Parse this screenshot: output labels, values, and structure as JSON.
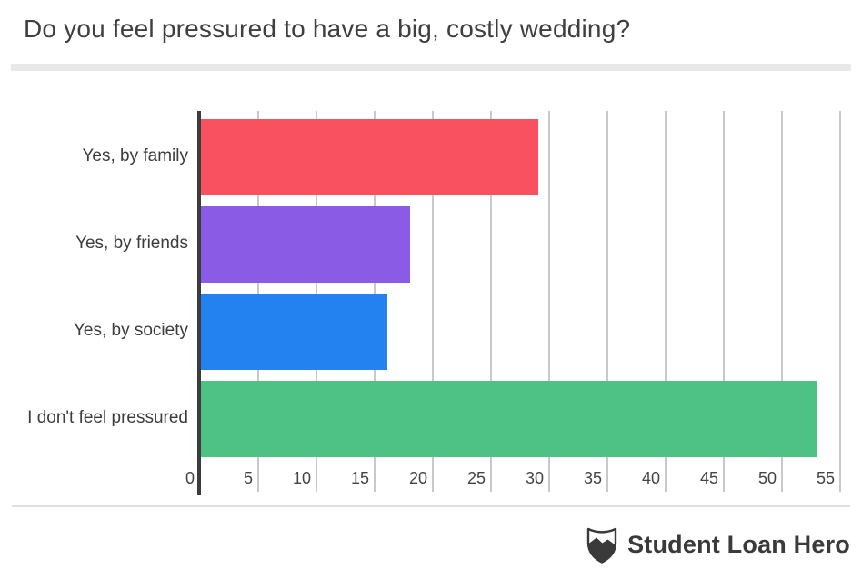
{
  "header": {
    "title": "Do you feel pressured to have a big, costly wedding?"
  },
  "chart_data": {
    "type": "bar",
    "orientation": "horizontal",
    "title": "Do you feel pressured to have a big, costly wedding?",
    "categories": [
      "Yes, by family",
      "Yes, by friends",
      "Yes, by society",
      "I don't feel pressured"
    ],
    "values": [
      29,
      18,
      16,
      53
    ],
    "bar_colors": [
      "#FA5161",
      "#8A5CE6",
      "#2382F0",
      "#4EC285"
    ],
    "xlabel": "",
    "ylabel": "",
    "xlim": [
      0,
      56
    ],
    "xticks": [
      0,
      5,
      10,
      15,
      20,
      25,
      30,
      35,
      40,
      45,
      50,
      55
    ],
    "grid": true,
    "legend": false,
    "axis_color": "#3c3c3c",
    "gridline_color": "#c9c9c9"
  },
  "footer": {
    "brand": "Student Loan Hero",
    "logo_icon": "shield-mountain-icon"
  }
}
